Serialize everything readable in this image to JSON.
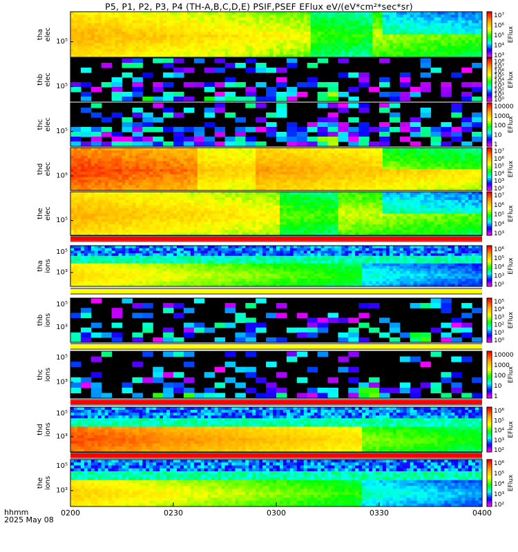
{
  "title": "P5, P1, P2, P3, P4 (TH-A,B,C,D,E) PSIF,PSEF EFlux eV/(eV*cm²*sec*sr)",
  "footer": {
    "label": "hhmm",
    "date": "2025 May 08"
  },
  "colors": {
    "separator_red": "#ff0000",
    "separator_yellow": "#ffff00",
    "no_data": "#000000",
    "colormap": [
      "#ff0000",
      "#ffa000",
      "#ffff00",
      "#00ff00",
      "#00ffff",
      "#0000ff",
      "#ff00ff",
      "#000000"
    ]
  },
  "chart_data": [
    {
      "type": "heatmap",
      "panel": "tha-elec",
      "ylabel": [
        "tha",
        "elec"
      ],
      "ytick": "10⁵",
      "cbar_label": "EFlux",
      "cbar_ticks": [
        "10⁷",
        "10⁶",
        "10⁵",
        "10⁴",
        "10³"
      ],
      "style": "dense",
      "base": 0.22,
      "dropout": 0.58,
      "lowband": 0.0
    },
    {
      "type": "heatmap",
      "panel": "thb-elec",
      "ylabel": [
        "thb",
        "elec"
      ],
      "ytick": "10⁵",
      "cbar_label": "EFlux",
      "cbar_ticks": [
        "10⁸",
        "10⁷",
        "10⁶",
        "10⁵",
        "10⁴",
        "10³",
        "10²",
        "10¹",
        "10⁰"
      ],
      "style": "sparse",
      "density": 0.35,
      "spike": 0.61
    },
    {
      "type": "heatmap",
      "panel": "thc-elec",
      "ylabel": [
        "thc",
        "elec"
      ],
      "ytick": "10⁵",
      "cbar_label": "EFlux",
      "cbar_ticks": [
        "10000",
        "1000",
        "100",
        "10",
        "1"
      ],
      "style": "sparse",
      "density": 0.45,
      "spike": 0.61
    },
    {
      "type": "heatmap",
      "panel": "thd-elec",
      "ylabel": [
        "thd",
        "elec"
      ],
      "ytick": "10⁵",
      "cbar_label": "EFlux",
      "cbar_ticks": [
        "10⁷",
        "10⁶",
        "10⁵",
        "10⁴",
        "10³",
        "10²"
      ],
      "style": "dense",
      "base": 0.06,
      "dropout": 0.3,
      "lowband": 0.0
    },
    {
      "type": "heatmap",
      "panel": "the-elec",
      "ylabel": [
        "the",
        "elec"
      ],
      "ytick": "10⁵",
      "cbar_label": "EFlux",
      "cbar_ticks": [
        "10⁷",
        "10⁶",
        "10⁵",
        "10⁴",
        "10³"
      ],
      "style": "dense",
      "base": 0.22,
      "dropout": 0.5,
      "lowband": 0.0
    },
    {
      "type": "heatmap",
      "panel": "tha-ions",
      "ylabel": [
        "tha",
        "ions"
      ],
      "ytick2": "10⁵",
      "ytick": "10³",
      "cbar_label": "EFlux",
      "cbar_ticks": [
        "10⁶",
        "10⁵",
        "10⁴",
        "10³",
        "10²"
      ],
      "style": "ions",
      "base": 0.3
    },
    {
      "type": "heatmap",
      "panel": "thb-ions",
      "ylabel": [
        "thb",
        "ions"
      ],
      "ytick2": "10⁵",
      "ytick": "10³",
      "cbar_label": "EFlux",
      "cbar_ticks": [
        "10⁵",
        "10⁴",
        "10³",
        "10²",
        "10¹",
        "10⁰"
      ],
      "style": "sparse",
      "density": 0.3,
      "spike": 0.84
    },
    {
      "type": "heatmap",
      "panel": "thc-ions",
      "ylabel": [
        "thc",
        "ions"
      ],
      "ytick2": "10⁵",
      "ytick": "10³",
      "cbar_label": "EFlux",
      "cbar_ticks": [
        "10000",
        "1000",
        "100",
        "10",
        "1"
      ],
      "style": "sparse",
      "density": 0.3,
      "spike": 0.72
    },
    {
      "type": "heatmap",
      "panel": "thd-ions",
      "ylabel": [
        "thd",
        "ions"
      ],
      "ytick2": "10⁵",
      "ytick": "10³",
      "cbar_label": "EFlux",
      "cbar_ticks": [
        "10⁶",
        "10⁵",
        "10⁴",
        "10³",
        "10²"
      ],
      "style": "ions",
      "base": 0.08
    },
    {
      "type": "heatmap",
      "panel": "the-ions",
      "ylabel": [
        "the",
        "ions"
      ],
      "ytick2": "10⁵",
      "ytick": "10³",
      "cbar_label": "EFlux",
      "cbar_ticks": [
        "10⁶",
        "10⁵",
        "10⁴",
        "10³",
        "10²"
      ],
      "style": "ions",
      "base": 0.28
    }
  ],
  "xaxis": {
    "ticks": [
      "0200",
      "0230",
      "0300",
      "0330",
      "0400"
    ]
  }
}
